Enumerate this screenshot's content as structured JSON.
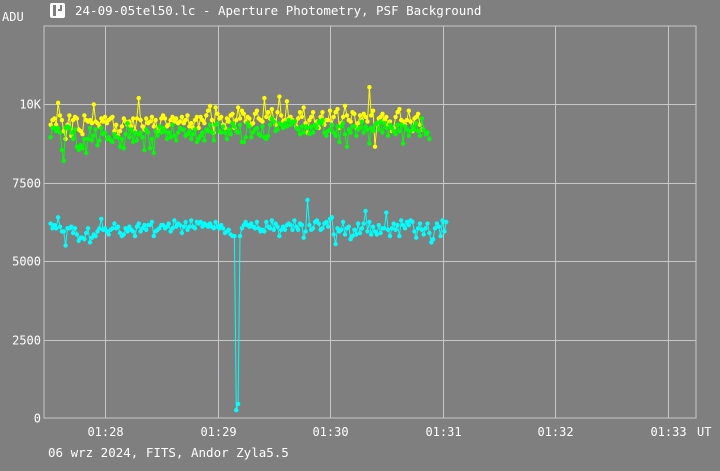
{
  "window": {
    "title": "24-09-05tel50.lc - Aperture Photometry, PSF Background"
  },
  "footer": {
    "text": "06 wrz 2024, FITS, Andor Zyla5.5"
  },
  "icons": {
    "app": "app-logo-icon"
  },
  "colors": {
    "background": "#7f7f7f",
    "grid": "#c8c8c8",
    "text": "#ffffff"
  },
  "chart_data": {
    "type": "line",
    "ylabel": "ADU",
    "xlabel": "UT",
    "ylim": [
      0,
      12500
    ],
    "y_ticks": [
      0,
      2500,
      5000,
      7500,
      10000
    ],
    "y_tick_labels": [
      "0",
      "2500",
      "5000",
      "7500",
      "10K"
    ],
    "x_ticks": [
      "01:28",
      "01:29",
      "01:30",
      "01:31",
      "01:32",
      "01:33"
    ],
    "grid": true,
    "legend": "none",
    "x_start": "01:27:31",
    "x_step_seconds": 1,
    "series": [
      {
        "color": "#ffff00",
        "values": [
          9350,
          9500,
          9550,
          9350,
          10050,
          9650,
          9500,
          9150,
          8900,
          9350,
          9650,
          9000,
          9500,
          9600,
          9550,
          9200,
          9150,
          9050,
          9650,
          9500,
          9450,
          9500,
          9400,
          10000,
          9450,
          9400,
          9300,
          9550,
          9450,
          9600,
          9400,
          9500,
          9550,
          9600,
          9150,
          9350,
          9000,
          9150,
          9300,
          9550,
          9450,
          9350,
          9450,
          9300,
          9550,
          9150,
          9550,
          10200,
          9500,
          9300,
          9200,
          9550,
          9400,
          9450,
          9600,
          9300,
          9500,
          9150,
          9250,
          9550,
          9650,
          9550,
          9300,
          9350,
          9500,
          9600,
          9450,
          9550,
          9400,
          9450,
          9600,
          9400,
          9500,
          9650,
          9300,
          9400,
          9250,
          9500,
          9600,
          9250,
          9600,
          9500,
          9400,
          9650,
          9800,
          9950,
          9500,
          9100,
          9900,
          9700,
          9550,
          9600,
          9350,
          9250,
          9550,
          9450,
          9650,
          9700,
          9250,
          9500,
          9900,
          9550,
          9800,
          9700,
          9450,
          9600,
          9550,
          9350,
          9400,
          9700,
          9800,
          9550,
          9500,
          9450,
          10200,
          9600,
          9750,
          9550,
          9850,
          9500,
          9350,
          9750,
          10250,
          9650,
          9450,
          9500,
          10100,
          9550,
          9600,
          9500,
          9450,
          9300,
          9550,
          9750,
          9600,
          9900,
          9400,
          9100,
          9500,
          9600,
          9750,
          9350,
          9450,
          9250,
          9600,
          9750,
          9350,
          9500,
          9500,
          9800,
          9350,
          9600,
          9750,
          9850,
          9250,
          9400,
          9600,
          9950,
          9650,
          9500,
          9450,
          9750,
          9700,
          9250,
          9400,
          9650,
          9500,
          9700,
          9600,
          9450,
          10550,
          9650,
          9800,
          8650,
          9350,
          9550,
          9600,
          9700,
          9500,
          9600,
          9350,
          9450,
          9150,
          9250,
          9600,
          9750,
          9850,
          9500,
          9450,
          9350,
          9500,
          9800,
          9450,
          9150,
          9550,
          9600,
          9700,
          9350,
          9200
        ],
        "label": ""
      },
      {
        "color": "#00ff00",
        "values": [
          8950,
          9250,
          9250,
          9150,
          9250,
          9100,
          8550,
          8200,
          9250,
          9300,
          9250,
          9100,
          8900,
          9200,
          8650,
          8550,
          8700,
          8600,
          8900,
          8450,
          8900,
          9250,
          8850,
          9000,
          9200,
          8700,
          8850,
          9250,
          9050,
          9100,
          8900,
          8950,
          8850,
          8800,
          9050,
          8950,
          8950,
          8650,
          8900,
          8600,
          9050,
          9400,
          8950,
          9200,
          8800,
          9100,
          8850,
          9050,
          9100,
          8950,
          8550,
          9200,
          9100,
          8600,
          8900,
          8450,
          9150,
          9000,
          9300,
          9100,
          9250,
          9150,
          8900,
          9100,
          8950,
          9350,
          9000,
          8850,
          9100,
          9250,
          9200,
          9200,
          9000,
          9050,
          9150,
          8900,
          9050,
          9200,
          8800,
          8900,
          9000,
          9100,
          8850,
          9200,
          9150,
          9350,
          9100,
          8850,
          9350,
          9400,
          9150,
          9100,
          9300,
          9100,
          8900,
          9200,
          9050,
          9400,
          9300,
          9150,
          9100,
          9350,
          8800,
          8800,
          8950,
          9400,
          9300,
          8950,
          9100,
          9200,
          9250,
          9050,
          9000,
          9300,
          8950,
          8900,
          9000,
          9350,
          9550,
          9450,
          9150,
          9200,
          9400,
          9350,
          9250,
          9400,
          9300,
          9500,
          9350,
          9450,
          9450,
          9250,
          9200,
          9050,
          9300,
          9100,
          9300,
          9250,
          9050,
          9300,
          9100,
          9350,
          9250,
          9450,
          9400,
          9500,
          9100,
          9000,
          9150,
          9200,
          9350,
          9100,
          9000,
          9300,
          8800,
          9300,
          9400,
          9050,
          8650,
          9200,
          9100,
          9300,
          9300,
          9000,
          9200,
          9250,
          9450,
          9100,
          9300,
          9200,
          8750,
          9250,
          9150,
          9350,
          9400,
          9200,
          9450,
          9100,
          9400,
          9250,
          9000,
          9350,
          9250,
          9150,
          9050,
          9350,
          9150,
          9350,
          8750,
          9300,
          9200,
          9000,
          9150,
          9300,
          9200,
          9400,
          9150,
          9000,
          9550,
          9200,
          9050,
          9100,
          8900
        ],
        "label": ""
      },
      {
        "color": "#00ffff",
        "values": [
          6200,
          6050,
          6150,
          6050,
          6400,
          6100,
          5950,
          5950,
          5500,
          6050,
          6050,
          6100,
          5900,
          6050,
          5850,
          5650,
          5750,
          5750,
          5700,
          5900,
          6050,
          5600,
          5750,
          5850,
          5800,
          5950,
          6050,
          6350,
          6000,
          6050,
          5950,
          5850,
          6000,
          6050,
          6200,
          6050,
          6100,
          5900,
          5800,
          5850,
          6050,
          5950,
          6100,
          6000,
          5950,
          5800,
          6100,
          6200,
          5950,
          6050,
          6150,
          6000,
          6150,
          6150,
          6250,
          5800,
          5950,
          6000,
          6050,
          6150,
          6150,
          6050,
          6100,
          6200,
          5950,
          6050,
          6300,
          6100,
          6200,
          6150,
          5900,
          6100,
          6250,
          6000,
          6100,
          6300,
          6100,
          6050,
          6250,
          6200,
          6250,
          6100,
          6200,
          6150,
          6100,
          6200,
          6100,
          6050,
          6250,
          6100,
          6050,
          6150,
          6050,
          5900,
          5950,
          6000,
          5850,
          5800,
          5800,
          250,
          450,
          5800,
          6050,
          6150,
          6250,
          6150,
          6100,
          6200,
          6100,
          6050,
          6250,
          6050,
          5950,
          6000,
          5950,
          6250,
          6100,
          6050,
          6300,
          6000,
          6200,
          6100,
          5800,
          6000,
          6100,
          6000,
          6150,
          6200,
          6150,
          6000,
          6300,
          6100,
          6000,
          6200,
          6150,
          5750,
          5950,
          6950,
          6150,
          6000,
          6050,
          6250,
          6300,
          6200,
          6000,
          6050,
          6200,
          6250,
          6100,
          6350,
          6400,
          5850,
          5550,
          6050,
          5950,
          6000,
          6250,
          5850,
          6050,
          6100,
          5700,
          5800,
          6000,
          5850,
          6200,
          5900,
          6050,
          6200,
          6600,
          5950,
          6250,
          5850,
          6100,
          5950,
          5850,
          6150,
          5900,
          6050,
          6050,
          6550,
          6000,
          5800,
          6050,
          6200,
          6000,
          6150,
          5800,
          6300,
          6150,
          6050,
          6250,
          6150,
          6300,
          6250,
          5950,
          5750,
          6050,
          6200,
          6000,
          5850,
          6050,
          6200,
          5900,
          5600,
          5700,
          6050,
          6200,
          6100,
          5800,
          6300,
          5950,
          6250
        ],
        "label": ""
      }
    ]
  }
}
